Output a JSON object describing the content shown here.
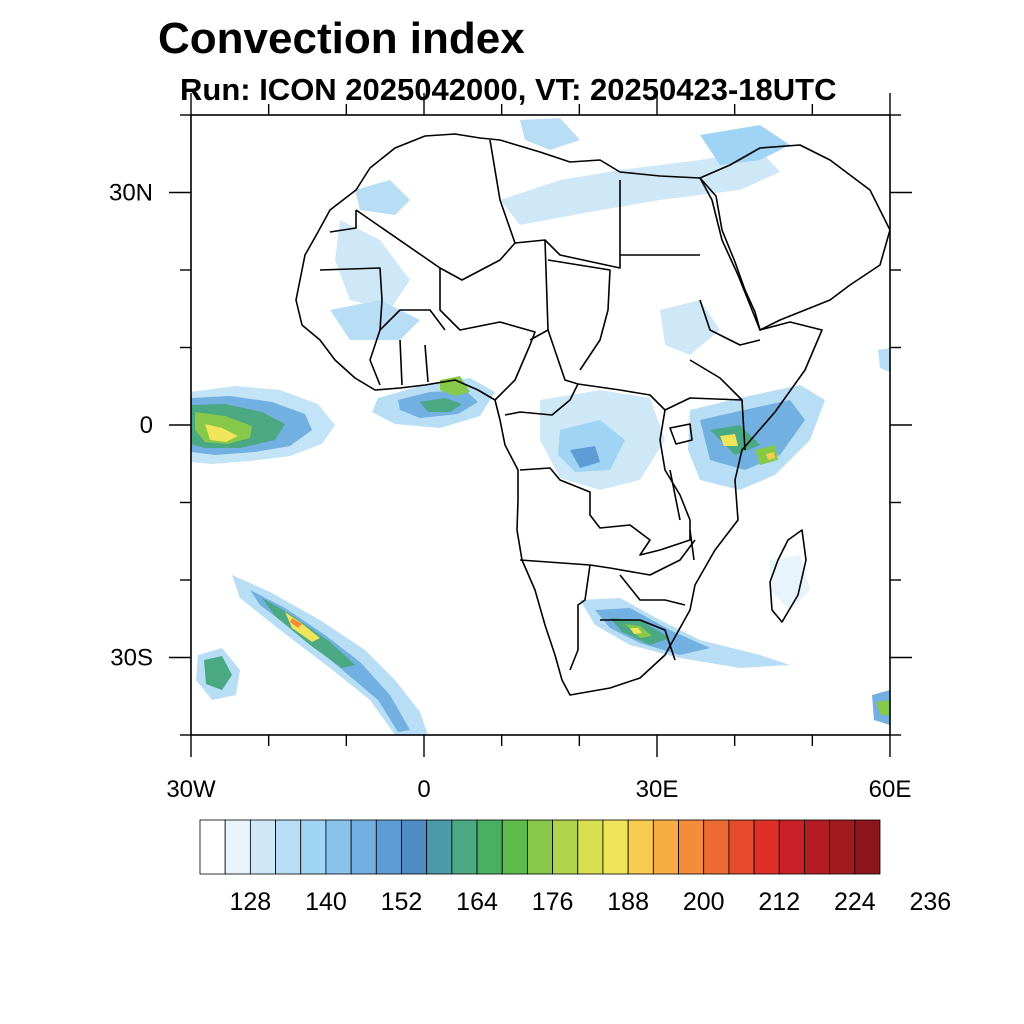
{
  "title": "Convection index",
  "subtitle": "Run: ICON 2025042000,  VT: 20250423-18UTC",
  "map": {
    "lon_range": [
      -30,
      60
    ],
    "lat_range": [
      -40,
      40
    ],
    "lat_labels": [
      {
        "lat": 30,
        "label": "30N"
      },
      {
        "lat": 0,
        "label": "0"
      },
      {
        "lat": -30,
        "label": "30S"
      }
    ],
    "lon_labels": [
      {
        "lon": -30,
        "label": "30W"
      },
      {
        "lon": 0,
        "label": "0"
      },
      {
        "lon": 30,
        "label": "30E"
      },
      {
        "lon": 60,
        "label": "60E"
      }
    ],
    "minor_lat": [
      -40,
      -20,
      -10,
      10,
      20,
      40
    ],
    "minor_lon": [
      -20,
      -10,
      10,
      20,
      40,
      50
    ]
  },
  "colorbar": {
    "colors": [
      "#ffffff",
      "#e8f4fc",
      "#cfe8f8",
      "#b8def6",
      "#9fd4f4",
      "#8ac4ec",
      "#72b0e2",
      "#5d9cd4",
      "#4f8cc4",
      "#4a9aa8",
      "#4aa882",
      "#48b060",
      "#5cbc4c",
      "#86c84a",
      "#b0d44c",
      "#d8e050",
      "#f0e45a",
      "#f8cc50",
      "#f8ac44",
      "#f48c3c",
      "#ee6a34",
      "#e64c2c",
      "#de3028",
      "#cc2028",
      "#b41c24",
      "#a01a20",
      "#8c161c"
    ],
    "labels": [
      "128",
      "140",
      "152",
      "164",
      "176",
      "188",
      "200",
      "212",
      "224",
      "236"
    ]
  }
}
